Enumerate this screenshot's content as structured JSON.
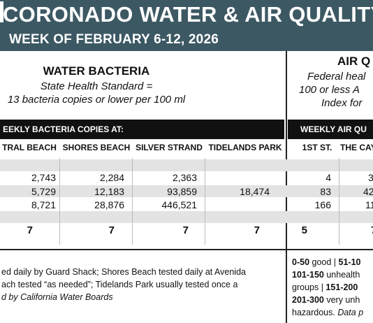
{
  "banner": {
    "title": "CORONADO WATER & AIR QUALITY R",
    "subtitle": "WEEK OF FEBRUARY 6-12, 2026"
  },
  "water": {
    "heading": "WATER BACTERIA",
    "standard_line1": "State Health Standard  =",
    "standard_line2": "13 bacteria copies or lower per 100 ml",
    "bar_label": "EEKLY BACTERIA COPIES AT:",
    "columns": [
      "TRAL BEACH",
      "SHORES BEACH",
      "SILVER STRAND",
      "TIDELANDS PARK"
    ],
    "rows": [
      [
        "2,743",
        "2,284",
        "2,363",
        ""
      ],
      [
        "5,729",
        "12,183",
        "93,859",
        "18,474"
      ],
      [
        "8,721",
        "28,876",
        "446,521",
        ""
      ],
      [
        "7",
        "7",
        "7",
        "7"
      ]
    ],
    "note_line1": "ed daily by Guard Shack; Shores Beach tested daily at Avenida",
    "note_line2": "ach tested “as needed”; Tidelands Park usually tested once a",
    "note_line3": "d by California Water Boards"
  },
  "air": {
    "heading": "AIR Q",
    "standard_line1": "Federal heal",
    "standard_line2": "100 or less A",
    "standard_line3": "Index for",
    "bar_label": "WEEKLY AIR QU",
    "columns": [
      "1ST ST.",
      "THE CAY"
    ],
    "rows": [
      [
        "4",
        "3"
      ],
      [
        "83",
        "42"
      ],
      [
        "166",
        "11"
      ],
      [
        "5",
        "7"
      ]
    ],
    "legend": {
      "l1_a": "0-50",
      "l1_b": " good | ",
      "l1_c": "51-10",
      "l2_a": "101-150",
      "l2_b": " unhealth",
      "l3_a": "groups | ",
      "l3_b": "151-200",
      "l4_a": "201-300",
      "l4_b": " very unh",
      "l5_a": "hazardous. ",
      "l5_b": "Data p"
    }
  }
}
